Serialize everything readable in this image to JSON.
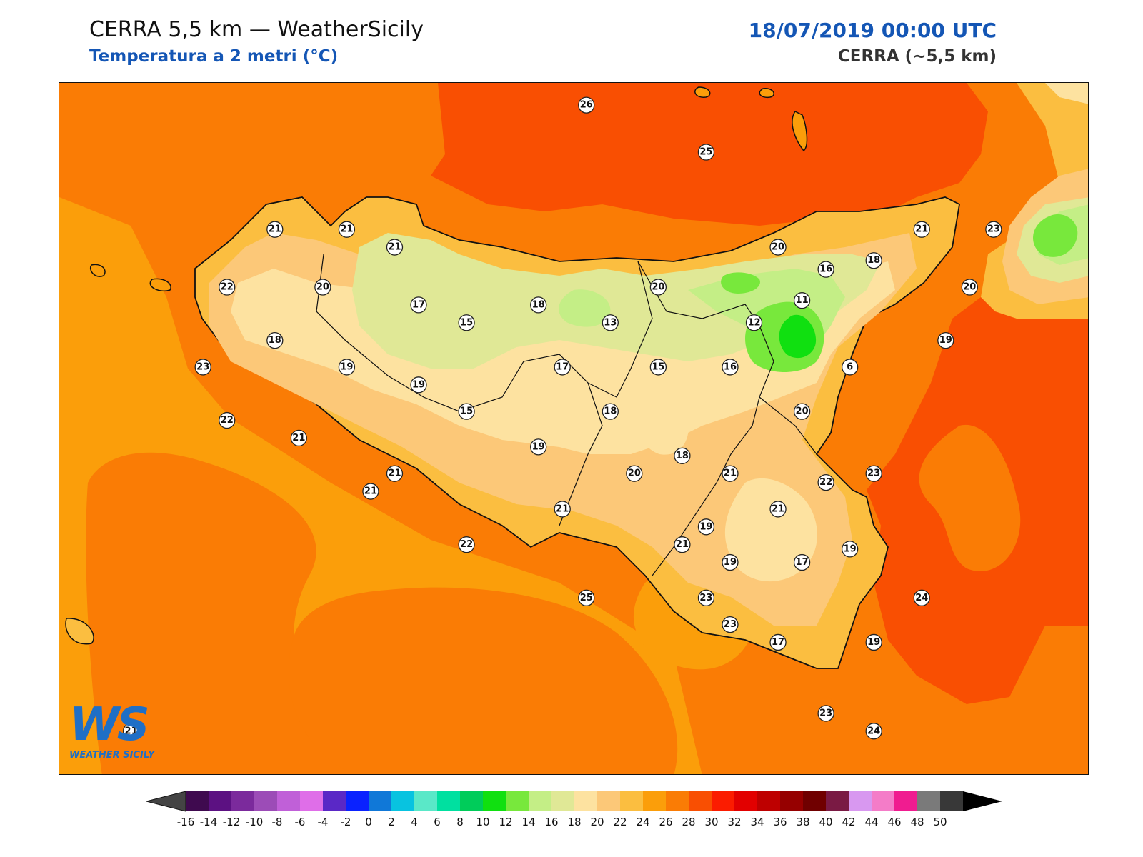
{
  "header": {
    "title": "CERRA 5,5 km — WeatherSicily",
    "subtitle": "Temperatura a 2 metri (°C)",
    "datetime": "18/07/2019 00:00 UTC",
    "model": "CERRA (~5,5 km)",
    "subtitle_color": "#1456b5",
    "datetime_color": "#1456b5"
  },
  "logo": {
    "text": "WS",
    "tagline": "WEATHER SICILY"
  },
  "colorbar": {
    "ticks": [
      "-16",
      "-14",
      "-12",
      "-10",
      "-8",
      "-6",
      "-4",
      "-2",
      "0",
      "2",
      "4",
      "6",
      "8",
      "10",
      "12",
      "14",
      "16",
      "18",
      "20",
      "22",
      "24",
      "26",
      "28",
      "30",
      "32",
      "34",
      "36",
      "38",
      "40",
      "42",
      "44",
      "46",
      "48",
      "50"
    ],
    "colors": [
      "#3f0a4f",
      "#5c1182",
      "#7b2a9c",
      "#9c4cb7",
      "#c060d8",
      "#df6ee8",
      "#5a28c6",
      "#0a22ff",
      "#1078d8",
      "#08c3e0",
      "#5ae8c8",
      "#00e0a0",
      "#00cc5a",
      "#10e010",
      "#78e83c",
      "#c4ee86",
      "#e0e896",
      "#fde2a0",
      "#fcc878",
      "#fbbe40",
      "#fb9e0a",
      "#fa7c05",
      "#f94f02",
      "#fb1c00",
      "#e20000",
      "#be0000",
      "#960000",
      "#700000",
      "#7a1a44",
      "#d898f0",
      "#f47cc8",
      "#f01c90",
      "#7a7a7a",
      "#383838"
    ],
    "under_color": "#444444",
    "over_color": "#000000"
  },
  "stations": [
    {
      "v": "26",
      "x": 26.0,
      "y": 95.5
    },
    {
      "v": "25",
      "x": 28.5,
      "y": 90.2
    },
    {
      "v": "21",
      "x": 19.5,
      "y": 81.5
    },
    {
      "v": "21",
      "x": 21.0,
      "y": 81.5
    },
    {
      "v": "21",
      "x": 22.0,
      "y": 79.5
    },
    {
      "v": "22",
      "x": 18.5,
      "y": 75.0
    },
    {
      "v": "20",
      "x": 20.5,
      "y": 75.0
    },
    {
      "v": "17",
      "x": 22.5,
      "y": 73.0
    },
    {
      "v": "15",
      "x": 23.5,
      "y": 71.0
    },
    {
      "v": "18",
      "x": 25.0,
      "y": 73.0
    },
    {
      "v": "18",
      "x": 19.5,
      "y": 69.0
    },
    {
      "v": "23",
      "x": 18.0,
      "y": 66.0
    },
    {
      "v": "19",
      "x": 21.0,
      "y": 66.0
    },
    {
      "v": "19",
      "x": 22.5,
      "y": 64.0
    },
    {
      "v": "15",
      "x": 23.5,
      "y": 61.0
    },
    {
      "v": "13",
      "x": 26.5,
      "y": 71.0
    },
    {
      "v": "17",
      "x": 25.5,
      "y": 66.0
    },
    {
      "v": "15",
      "x": 27.5,
      "y": 66.0
    },
    {
      "v": "18",
      "x": 26.5,
      "y": 61.0
    },
    {
      "v": "22",
      "x": 18.5,
      "y": 60.0
    },
    {
      "v": "21",
      "x": 20.0,
      "y": 58.0
    },
    {
      "v": "19",
      "x": 25.0,
      "y": 57.0
    },
    {
      "v": "21",
      "x": 22.0,
      "y": 54.0
    },
    {
      "v": "21",
      "x": 21.5,
      "y": 52.0
    },
    {
      "v": "20",
      "x": 27.0,
      "y": 54.0
    },
    {
      "v": "21",
      "x": 25.5,
      "y": 50.0
    },
    {
      "v": "22",
      "x": 23.5,
      "y": 46.0
    },
    {
      "v": "21",
      "x": 28.0,
      "y": 46.0
    },
    {
      "v": "25",
      "x": 26.0,
      "y": 40.0
    },
    {
      "v": "23",
      "x": 28.5,
      "y": 40.0
    },
    {
      "v": "20",
      "x": 27.5,
      "y": 75.0
    },
    {
      "v": "20",
      "x": 30.0,
      "y": 79.5
    },
    {
      "v": "16",
      "x": 31.0,
      "y": 77.0
    },
    {
      "v": "11",
      "x": 30.5,
      "y": 73.5
    },
    {
      "v": "12",
      "x": 29.5,
      "y": 71.0
    },
    {
      "v": "18",
      "x": 32.0,
      "y": 78.0
    },
    {
      "v": "21",
      "x": 33.0,
      "y": 81.5
    },
    {
      "v": "23",
      "x": 34.5,
      "y": 81.5
    },
    {
      "v": "20",
      "x": 34.0,
      "y": 75.0
    },
    {
      "v": "19",
      "x": 33.5,
      "y": 69.0
    },
    {
      "v": "16",
      "x": 29.0,
      "y": 66.0
    },
    {
      "v": "6",
      "x": 31.5,
      "y": 66.0
    },
    {
      "v": "20",
      "x": 30.5,
      "y": 61.0
    },
    {
      "v": "18",
      "x": 28.0,
      "y": 56.0
    },
    {
      "v": "21",
      "x": 29.0,
      "y": 54.0
    },
    {
      "v": "22",
      "x": 31.0,
      "y": 53.0
    },
    {
      "v": "23",
      "x": 32.0,
      "y": 54.0
    },
    {
      "v": "21",
      "x": 30.0,
      "y": 50.0
    },
    {
      "v": "19",
      "x": 28.5,
      "y": 48.0
    },
    {
      "v": "19",
      "x": 29.0,
      "y": 44.0
    },
    {
      "v": "17",
      "x": 30.5,
      "y": 44.0
    },
    {
      "v": "19",
      "x": 31.5,
      "y": 45.5
    },
    {
      "v": "24",
      "x": 33.0,
      "y": 40.0
    },
    {
      "v": "17",
      "x": 30.0,
      "y": 35.0
    },
    {
      "v": "19",
      "x": 32.0,
      "y": 35.0
    },
    {
      "v": "23",
      "x": 29.0,
      "y": 37.0
    },
    {
      "v": "23",
      "x": 31.0,
      "y": 27.0
    },
    {
      "v": "24",
      "x": 32.0,
      "y": 25.0
    },
    {
      "v": "21",
      "x": 16.5,
      "y": 25.0
    }
  ]
}
